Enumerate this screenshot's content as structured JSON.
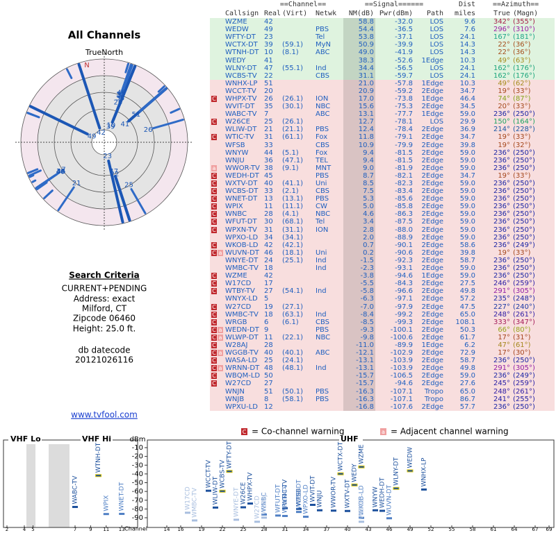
{
  "left": {
    "title": "All Channels",
    "north_label": "TrueNorth",
    "n_label": "N",
    "criteria_title": "Search Criteria",
    "criteria": [
      "CURRENT+PENDING",
      "Address: exact",
      "Milford, CT",
      "Zipcode 06460",
      "Height: 25.0 ft."
    ],
    "datecode_label": "db datecode",
    "datecode": "20121026116",
    "link": "www.tvfool.com"
  },
  "table": {
    "group_headers": [
      "==Channel==",
      "==Signal======",
      "Dist",
      "==Azimuth=="
    ],
    "headers": [
      "Callsign",
      "Real",
      "(Virt)",
      "Netwk",
      "NM(dB)",
      "Pwr(dBm)",
      "Path",
      "miles",
      "True",
      "(Magn)"
    ],
    "rows": [
      {
        "callsign": "WZME",
        "real": 42,
        "nm": "58.8",
        "pwr": "-32.0",
        "path": "LOS",
        "dist": "9.6",
        "az_true": "342°",
        "az_magn": "(355°)"
      },
      {
        "callsign": "WEDW",
        "real": 49,
        "netwk": "PBS",
        "nm": "54.4",
        "pwr": "-36.5",
        "path": "LOS",
        "dist": "7.6",
        "az_true": "296°",
        "az_magn": "(310°)"
      },
      {
        "callsign": "WFTY-DT",
        "real": 23,
        "netwk": "Tel",
        "nm": "53.8",
        "pwr": "-37.1",
        "path": "LOS",
        "dist": "24.1",
        "az_true": "167°",
        "az_magn": "(181°)"
      },
      {
        "callsign": "WCTX-DT",
        "real": 39,
        "virt": "(59.1)",
        "netwk": "MyN",
        "nm": "50.9",
        "pwr": "-39.9",
        "path": "LOS",
        "dist": "14.3",
        "az_true": "22°",
        "az_magn": "(36°)"
      },
      {
        "callsign": "WTNH-DT",
        "real": 10,
        "virt": "(8.1)",
        "netwk": "ABC",
        "nm": "49.0",
        "pwr": "-41.9",
        "path": "LOS",
        "dist": "14.3",
        "az_true": "22°",
        "az_magn": "(36°)"
      },
      {
        "callsign": "WEDY",
        "real": 41,
        "nm": "38.3",
        "pwr": "-52.6",
        "path": "1Edge",
        "dist": "10.3",
        "az_true": "49°",
        "az_magn": "(63°)"
      },
      {
        "callsign": "WLNY-DT",
        "real": 47,
        "virt": "(55.1)",
        "netwk": "Ind",
        "nm": "34.4",
        "pwr": "-56.5",
        "path": "LOS",
        "dist": "24.1",
        "az_true": "162°",
        "az_magn": "(176°)"
      },
      {
        "callsign": "WCBS-TV",
        "real": 22,
        "netwk": "CBS",
        "nm": "31.1",
        "pwr": "-59.7",
        "path": "LOS",
        "dist": "24.1",
        "az_true": "162°",
        "az_magn": "(176°)"
      },
      {
        "callsign": "WNHX-LP",
        "real": 51,
        "nm": "21.0",
        "pwr": "-57.8",
        "path": "1Edge",
        "dist": "10.3",
        "az_true": "49°",
        "az_magn": "(62°)"
      },
      {
        "callsign": "WCCT-TV",
        "real": 20,
        "nm": "20.9",
        "pwr": "-59.2",
        "path": "2Edge",
        "dist": "34.7",
        "az_true": "19°",
        "az_magn": "(33°)"
      },
      {
        "callsign": "WHPX-TV",
        "real": 26,
        "virt": "(26.1)",
        "netwk": "ION",
        "nm": "17.0",
        "pwr": "-73.8",
        "path": "1Edge",
        "dist": "46.4",
        "az_true": "74°",
        "az_magn": "(87°)",
        "warn": [
          "C"
        ]
      },
      {
        "callsign": "WVIT-DT",
        "real": 35,
        "virt": "(30.1)",
        "netwk": "NBC",
        "nm": "15.6",
        "pwr": "-75.3",
        "path": "2Edge",
        "dist": "34.5",
        "az_true": "20°",
        "az_magn": "(33°)"
      },
      {
        "callsign": "WABC-TV",
        "real": 7,
        "netwk": "ABC",
        "nm": "13.1",
        "pwr": "-77.7",
        "path": "1Edge",
        "dist": "59.0",
        "az_true": "236°",
        "az_magn": "(250°)"
      },
      {
        "callsign": "W26CE",
        "real": 25,
        "virt": "(26.1)",
        "nm": "12.7",
        "pwr": "-78.1",
        "path": "LOS",
        "dist": "29.9",
        "az_true": "150°",
        "az_magn": "(164°)",
        "warn": [
          "C"
        ]
      },
      {
        "callsign": "WLIW-DT",
        "real": 21,
        "virt": "(21.1)",
        "netwk": "PBS",
        "nm": "12.4",
        "pwr": "-78.4",
        "path": "2Edge",
        "dist": "36.9",
        "az_true": "214°",
        "az_magn": "(228°)"
      },
      {
        "callsign": "WTIC-TV",
        "real": 31,
        "virt": "(61.1)",
        "netwk": "Fox",
        "nm": "11.8",
        "pwr": "-79.1",
        "path": "2Edge",
        "dist": "34.7",
        "az_true": "19°",
        "az_magn": "(33°)",
        "warn": [
          "C"
        ]
      },
      {
        "callsign": "WFSB",
        "real": 33,
        "netwk": "CBS",
        "nm": "10.9",
        "pwr": "-79.9",
        "path": "2Edge",
        "dist": "39.8",
        "az_true": "19°",
        "az_magn": "(32°)"
      },
      {
        "callsign": "WNYW",
        "real": 44,
        "virt": "(5.1)",
        "netwk": "Fox",
        "nm": "9.4",
        "pwr": "-81.5",
        "path": "2Edge",
        "dist": "59.0",
        "az_true": "236°",
        "az_magn": "(250°)"
      },
      {
        "callsign": "WNJU",
        "real": 36,
        "virt": "(47.1)",
        "netwk": "TEL",
        "nm": "9.4",
        "pwr": "-81.5",
        "path": "2Edge",
        "dist": "59.0",
        "az_true": "236°",
        "az_magn": "(250°)"
      },
      {
        "callsign": "WWOR-TV",
        "real": 38,
        "virt": "(9.1)",
        "netwk": "MNT",
        "nm": "9.0",
        "pwr": "-81.9",
        "path": "2Edge",
        "dist": "59.0",
        "az_true": "236°",
        "az_magn": "(250°)",
        "warn": [
          "a"
        ]
      },
      {
        "callsign": "WEDH-DT",
        "real": 45,
        "netwk": "PBS",
        "nm": "8.7",
        "pwr": "-82.1",
        "path": "2Edge",
        "dist": "34.7",
        "az_true": "19°",
        "az_magn": "(33°)",
        "warn": [
          "C"
        ]
      },
      {
        "callsign": "WXTV-DT",
        "real": 40,
        "virt": "(41.1)",
        "netwk": "Uni",
        "nm": "8.5",
        "pwr": "-82.3",
        "path": "2Edge",
        "dist": "59.0",
        "az_true": "236°",
        "az_magn": "(250°)",
        "warn": [
          "C"
        ]
      },
      {
        "callsign": "WCBS-DT",
        "real": 33,
        "virt": "(2.1)",
        "netwk": "CBS",
        "nm": "7.5",
        "pwr": "-83.4",
        "path": "2Edge",
        "dist": "59.0",
        "az_true": "236°",
        "az_magn": "(250°)",
        "warn": [
          "C"
        ]
      },
      {
        "callsign": "WNET-DT",
        "real": 13,
        "virt": "(13.1)",
        "netwk": "PBS",
        "nm": "5.3",
        "pwr": "-85.6",
        "path": "2Edge",
        "dist": "59.0",
        "az_true": "236°",
        "az_magn": "(250°)",
        "warn": [
          "C"
        ]
      },
      {
        "callsign": "WPIX",
        "real": 11,
        "virt": "(11.1)",
        "netwk": "CW",
        "nm": "5.0",
        "pwr": "-85.8",
        "path": "2Edge",
        "dist": "59.0",
        "az_true": "236°",
        "az_magn": "(250°)",
        "warn": [
          "C"
        ]
      },
      {
        "callsign": "WNBC",
        "real": 28,
        "virt": "(4.1)",
        "netwk": "NBC",
        "nm": "4.6",
        "pwr": "-86.3",
        "path": "2Edge",
        "dist": "59.0",
        "az_true": "236°",
        "az_magn": "(250°)",
        "warn": [
          "C"
        ]
      },
      {
        "callsign": "WFUT-DT",
        "real": 30,
        "virt": "(68.1)",
        "netwk": "Tel",
        "nm": "3.4",
        "pwr": "-87.5",
        "path": "2Edge",
        "dist": "59.0",
        "az_true": "236°",
        "az_magn": "(250°)",
        "warn": [
          "C"
        ]
      },
      {
        "callsign": "WPXN-TV",
        "real": 31,
        "virt": "(31.1)",
        "netwk": "ION",
        "nm": "2.8",
        "pwr": "-88.0",
        "path": "2Edge",
        "dist": "59.0",
        "az_true": "236°",
        "az_magn": "(250°)",
        "warn": [
          "C"
        ]
      },
      {
        "callsign": "WPXO-LD",
        "real": 34,
        "virt": "(34.1)",
        "nm": "2.0",
        "pwr": "-88.9",
        "path": "2Edge",
        "dist": "59.0",
        "az_true": "236°",
        "az_magn": "(250°)"
      },
      {
        "callsign": "WKOB-LD",
        "real": 42,
        "virt": "(42.1)",
        "nm": "0.7",
        "pwr": "-90.1",
        "path": "2Edge",
        "dist": "58.6",
        "az_true": "236°",
        "az_magn": "(249°)",
        "warn": [
          "C"
        ]
      },
      {
        "callsign": "WUVN-DT",
        "real": 46,
        "virt": "(18.1)",
        "netwk": "Uni",
        "nm": "0.2",
        "pwr": "-90.6",
        "path": "2Edge",
        "dist": "39.8",
        "az_true": "19°",
        "az_magn": "(33°)",
        "warn": [
          "C",
          "a"
        ]
      },
      {
        "callsign": "WNYE-DT",
        "real": 24,
        "virt": "(25.1)",
        "netwk": "Ind",
        "nm": "-1.5",
        "pwr": "-92.3",
        "path": "2Edge",
        "dist": "58.7",
        "az_true": "236°",
        "az_magn": "(250°)"
      },
      {
        "callsign": "WMBC-TV",
        "real": 18,
        "netwk": "Ind",
        "nm": "-2.3",
        "pwr": "-93.1",
        "path": "2Edge",
        "dist": "59.0",
        "az_true": "236°",
        "az_magn": "(250°)"
      },
      {
        "callsign": "WZME",
        "real": 42,
        "nm": "-3.8",
        "pwr": "-94.6",
        "path": "1Edge",
        "dist": "59.0",
        "az_true": "236°",
        "az_magn": "(250°)",
        "warn": [
          "C"
        ]
      },
      {
        "callsign": "W17CD",
        "real": 17,
        "nm": "-5.5",
        "pwr": "-84.3",
        "path": "2Edge",
        "dist": "27.5",
        "az_true": "246°",
        "az_magn": "(259°)",
        "warn": [
          "C"
        ]
      },
      {
        "callsign": "WTBY-TV",
        "real": 27,
        "virt": "(54.1)",
        "netwk": "Ind",
        "nm": "-5.8",
        "pwr": "-96.6",
        "path": "2Edge",
        "dist": "49.8",
        "az_true": "291°",
        "az_magn": "(305°)",
        "warn": [
          "C"
        ]
      },
      {
        "callsign": "WNYX-LD",
        "real": 5,
        "nm": "-6.3",
        "pwr": "-97.1",
        "path": "2Edge",
        "dist": "57.2",
        "az_true": "235°",
        "az_magn": "(248°)"
      },
      {
        "callsign": "W27CD",
        "real": 19,
        "virt": "(27.1)",
        "nm": "-7.0",
        "pwr": "-97.9",
        "path": "2Edge",
        "dist": "47.5",
        "az_true": "227°",
        "az_magn": "(240°)",
        "warn": [
          "C"
        ]
      },
      {
        "callsign": "WMBC-TV",
        "real": 18,
        "virt": "(63.1)",
        "netwk": "Ind",
        "nm": "-8.4",
        "pwr": "-99.2",
        "path": "2Edge",
        "dist": "65.0",
        "az_true": "248°",
        "az_magn": "(261°)",
        "warn": [
          "C"
        ]
      },
      {
        "callsign": "WRGB",
        "real": 6,
        "virt": "(6.1)",
        "netwk": "CBS",
        "nm": "-8.5",
        "pwr": "-99.3",
        "path": "2Edge",
        "dist": "108.1",
        "az_true": "333°",
        "az_magn": "(347°)",
        "warn": [
          "C"
        ]
      },
      {
        "callsign": "WEDN-DT",
        "real": 9,
        "netwk": "PBS",
        "nm": "-9.3",
        "pwr": "-100.1",
        "path": "2Edge",
        "dist": "50.3",
        "az_true": "66°",
        "az_magn": "(80°)",
        "warn": [
          "C",
          "a"
        ]
      },
      {
        "callsign": "WLWP-DT",
        "real": 11,
        "virt": "(22.1)",
        "netwk": "NBC",
        "nm": "-9.8",
        "pwr": "-100.6",
        "path": "2Edge",
        "dist": "61.7",
        "az_true": "17°",
        "az_magn": "(31°)",
        "warn": [
          "C",
          "a"
        ]
      },
      {
        "callsign": "W28AJ",
        "real": 28,
        "nm": "-11.0",
        "pwr": "-89.9",
        "path": "1Edge",
        "dist": "6.2",
        "az_true": "47°",
        "az_magn": "(61°)",
        "warn": [
          "C"
        ]
      },
      {
        "callsign": "WGGB-TV",
        "real": 40,
        "virt": "(40.1)",
        "netwk": "ABC",
        "nm": "-12.1",
        "pwr": "-102.9",
        "path": "2Edge",
        "dist": "72.9",
        "az_true": "17°",
        "az_magn": "(30°)",
        "warn": [
          "C",
          "a"
        ]
      },
      {
        "callsign": "WASA-LD",
        "real": 25,
        "virt": "(24.1)",
        "nm": "-13.1",
        "pwr": "-103.9",
        "path": "2Edge",
        "dist": "58.7",
        "az_true": "236°",
        "az_magn": "(250°)",
        "warn": [
          "C"
        ]
      },
      {
        "callsign": "WRNN-DT",
        "real": 48,
        "virt": "(48.1)",
        "netwk": "Ind",
        "nm": "-13.1",
        "pwr": "-103.9",
        "path": "2Edge",
        "dist": "49.8",
        "az_true": "291°",
        "az_magn": "(305°)",
        "warn": [
          "C",
          "a"
        ]
      },
      {
        "callsign": "WBQM-LD",
        "real": 50,
        "nm": "-15.7",
        "pwr": "-106.5",
        "path": "2Edge",
        "dist": "59.0",
        "az_true": "236°",
        "az_magn": "(249°)",
        "warn": [
          "C"
        ]
      },
      {
        "callsign": "W27CD",
        "real": 27,
        "nm": "-15.7",
        "pwr": "-94.6",
        "path": "2Edge",
        "dist": "27.6",
        "az_true": "245°",
        "az_magn": "(259°)",
        "warn": [
          "C"
        ]
      },
      {
        "callsign": "WNJN",
        "real": 51,
        "virt": "(50.1)",
        "netwk": "PBS",
        "nm": "-16.3",
        "pwr": "-107.1",
        "path": "Tropo",
        "dist": "65.0",
        "az_true": "248°",
        "az_magn": "(261°)"
      },
      {
        "callsign": "WNJB",
        "real": 8,
        "virt": "(58.1)",
        "netwk": "PBS",
        "nm": "-16.3",
        "pwr": "-107.1",
        "path": "Tropo",
        "dist": "86.7",
        "az_true": "241°",
        "az_magn": "(255°)"
      },
      {
        "callsign": "WPXU-LD",
        "real": 12,
        "nm": "-16.8",
        "pwr": "-107.6",
        "path": "2Edge",
        "dist": "57.7",
        "az_true": "236°",
        "az_magn": "(250°)"
      }
    ]
  },
  "legend": [
    {
      "icon": "C",
      "text": "= Co-channel warning"
    },
    {
      "icon": "a",
      "text": "= Adjacent channel warning"
    }
  ],
  "spectrum": {
    "vhf_lo_label": "VHF Lo",
    "vhf_hi_label": "VHF Hi",
    "uhf_label": "UHF",
    "unit": "dBm",
    "axis_label": "Channel",
    "ylim": [
      -95,
      -5
    ],
    "yticks": [
      -10,
      -20,
      -30,
      -40,
      -50,
      -60,
      -70,
      -80,
      -90
    ],
    "vhf_ticks": [
      2,
      4,
      5,
      7,
      9,
      11,
      13
    ],
    "uhf_ticks": [
      14,
      16,
      19,
      22,
      25,
      28,
      31,
      34,
      37,
      40,
      43,
      46,
      49,
      52,
      55,
      58,
      61,
      64,
      67,
      69
    ]
  }
}
